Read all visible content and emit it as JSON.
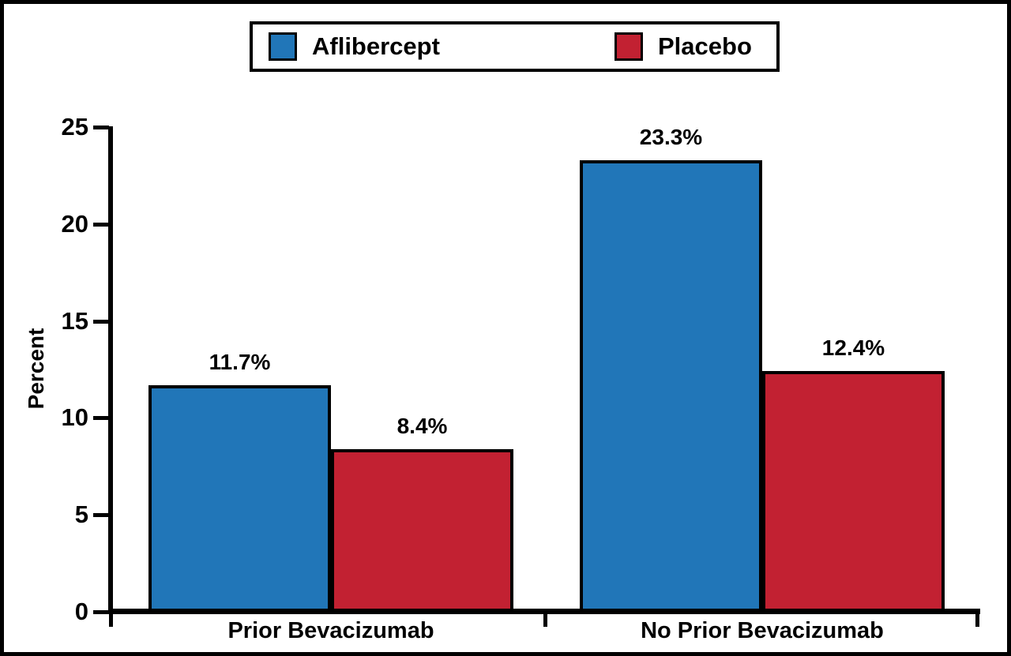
{
  "figure": {
    "background": "#FFFFFF",
    "frame_color": "#000000"
  },
  "chart_data": {
    "type": "bar",
    "title": "",
    "ylabel": "Percent",
    "xlabel": "",
    "ylim": [
      0,
      25
    ],
    "ytick_values": [
      0,
      5,
      10,
      15,
      20,
      25
    ],
    "ytick_labels": [
      "0",
      "5",
      "10",
      "15",
      "20",
      "25"
    ],
    "categories": [
      "Prior Bevacizumab",
      "No Prior Bevacizumab"
    ],
    "series": [
      {
        "name": "Aflibercept",
        "color": "#2176B8",
        "values": [
          11.7,
          23.3
        ],
        "labels": [
          "11.7%",
          "23.3%"
        ]
      },
      {
        "name": "Placebo",
        "color": "#C22132",
        "values": [
          8.4,
          12.4
        ],
        "labels": [
          "8.4%",
          "12.4%"
        ]
      }
    ],
    "legend_position": "top-center",
    "grid": false,
    "axis_color": "#000000",
    "text_color": "#000000"
  }
}
